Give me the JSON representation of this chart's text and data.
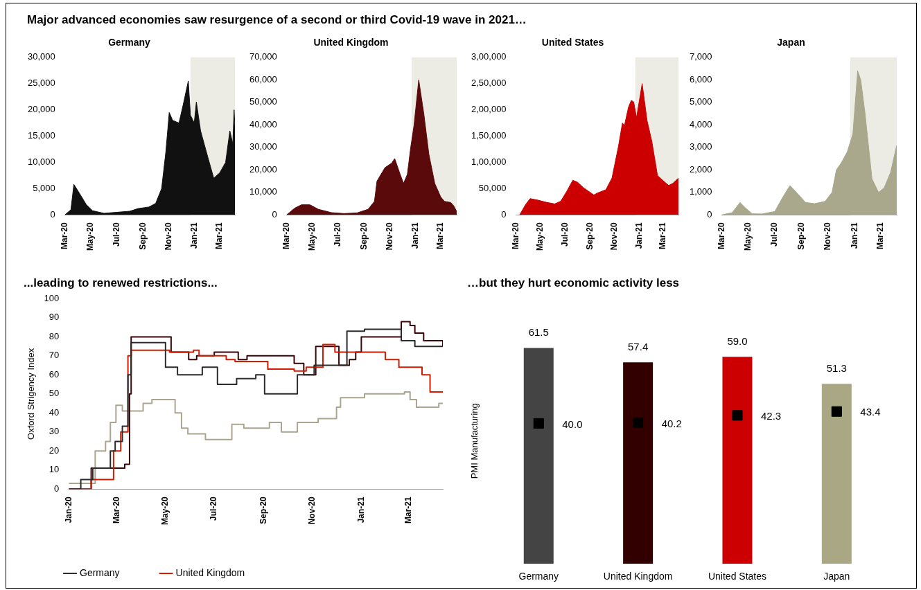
{
  "chart_data": [
    {
      "type": "other",
      "title": "Major advanced economies saw resurgence of a second or third Covid-19 wave in 2021…"
    },
    {
      "type": "area",
      "title": "Germany",
      "xlim": [
        "2020-03-01",
        "2021-04-06"
      ],
      "xticks": [
        {
          "value": "2020-03",
          "label": "Mar-20"
        },
        {
          "value": "2020-05",
          "label": "May-20"
        },
        {
          "value": "2020-07",
          "label": "Jul-20"
        },
        {
          "value": "2020-09",
          "label": "Sep-20"
        },
        {
          "value": "2020-11",
          "label": "Nov-20"
        },
        {
          "value": "2021-01",
          "label": "Jan-21"
        },
        {
          "value": "2021-03",
          "label": "Mar-21"
        }
      ],
      "ylim": [
        0,
        30000
      ],
      "yticks": [
        {
          "value": 0,
          "label": "0"
        },
        {
          "value": 5000,
          "label": "5,000"
        },
        {
          "value": 10000,
          "label": "10,000"
        },
        {
          "value": 15000,
          "label": "15,000"
        },
        {
          "value": 20000,
          "label": "20,000"
        },
        {
          "value": 25000,
          "label": "25,000"
        },
        {
          "value": 30000,
          "label": "30,000"
        }
      ],
      "bands": [
        {
          "axis": "x",
          "from": "2020-12-22",
          "to": "2021-04-06",
          "color": "#ececE4"
        }
      ],
      "series": [
        {
          "color": "#111111",
          "x": [
            "2020-03-01",
            "2020-03-15",
            "2020-03-22",
            "2020-04-05",
            "2020-04-20",
            "2020-05-05",
            "2020-06-01",
            "2020-07-01",
            "2020-08-01",
            "2020-08-20",
            "2020-09-15",
            "2020-10-01",
            "2020-10-15",
            "2020-10-25",
            "2020-11-02",
            "2020-11-10",
            "2020-11-25",
            "2020-12-05",
            "2020-12-17",
            "2020-12-22",
            "2020-12-31",
            "2021-01-05",
            "2021-01-15",
            "2021-02-01",
            "2021-02-15",
            "2021-03-01",
            "2021-03-15",
            "2021-03-25",
            "2021-04-01",
            "2021-04-04",
            "2021-04-06"
          ],
          "values": [
            0,
            1000,
            5800,
            4000,
            2000,
            800,
            300,
            500,
            700,
            1200,
            1500,
            2200,
            5000,
            12000,
            19500,
            18000,
            17500,
            21000,
            25500,
            19000,
            17500,
            21500,
            16000,
            11000,
            7000,
            8000,
            10000,
            16000,
            13500,
            20000,
            17000
          ]
        }
      ]
    },
    {
      "type": "area",
      "title": "United Kingdom",
      "xlim": [
        "2020-03-01",
        "2021-04-08"
      ],
      "xticks": [
        {
          "value": "2020-03",
          "label": "Mar-20"
        },
        {
          "value": "2020-05",
          "label": "May-20"
        },
        {
          "value": "2020-07",
          "label": "Jul-20"
        },
        {
          "value": "2020-09",
          "label": "Sep-20"
        },
        {
          "value": "2020-11",
          "label": "Nov-20"
        },
        {
          "value": "2021-01",
          "label": "Jan-21"
        },
        {
          "value": "2021-03",
          "label": "Mar-21"
        }
      ],
      "ylim": [
        0,
        70000
      ],
      "yticks": [
        {
          "value": 0,
          "label": "0"
        },
        {
          "value": 10000,
          "label": "10,000"
        },
        {
          "value": 20000,
          "label": "20,000"
        },
        {
          "value": 30000,
          "label": "30,000"
        },
        {
          "value": 40000,
          "label": "40,000"
        },
        {
          "value": 50000,
          "label": "50,000"
        },
        {
          "value": 60000,
          "label": "60,000"
        },
        {
          "value": 70000,
          "label": "70,000"
        }
      ],
      "bands": [
        {
          "axis": "x",
          "from": "2020-12-22",
          "to": "2021-04-08",
          "color": "#ececE4"
        }
      ],
      "series": [
        {
          "color": "#5a0a0a",
          "x": [
            "2020-03-01",
            "2020-03-20",
            "2020-04-05",
            "2020-04-25",
            "2020-05-15",
            "2020-06-15",
            "2020-07-15",
            "2020-08-15",
            "2020-09-10",
            "2020-09-25",
            "2020-10-01",
            "2020-10-20",
            "2020-11-05",
            "2020-11-12",
            "2020-11-25",
            "2020-12-03",
            "2020-12-12",
            "2020-12-20",
            "2020-12-28",
            "2021-01-08",
            "2021-01-20",
            "2021-02-01",
            "2021-02-15",
            "2021-03-01",
            "2021-03-10",
            "2021-03-25",
            "2021-04-01",
            "2021-04-08"
          ],
          "values": [
            0,
            3000,
            4500,
            4500,
            2500,
            1000,
            600,
            900,
            2500,
            6000,
            15000,
            21000,
            23000,
            25000,
            18000,
            14000,
            18000,
            30000,
            40000,
            60000,
            45000,
            27000,
            14000,
            8000,
            6000,
            5500,
            4000,
            1500
          ]
        }
      ]
    },
    {
      "type": "area",
      "title": "United States",
      "xlim": [
        "2020-03-01",
        "2021-04-08"
      ],
      "xticks": [
        {
          "value": "2020-03",
          "label": "Mar-20"
        },
        {
          "value": "2020-05",
          "label": "May-20"
        },
        {
          "value": "2020-07",
          "label": "Jul-20"
        },
        {
          "value": "2020-09",
          "label": "Sep-20"
        },
        {
          "value": "2020-11",
          "label": "Nov-20"
        },
        {
          "value": "2021-01",
          "label": "Jan-21"
        },
        {
          "value": "2021-03",
          "label": "Mar-21"
        }
      ],
      "ylim": [
        0,
        300000
      ],
      "yticks": [
        {
          "value": 0,
          "label": "0"
        },
        {
          "value": 50000,
          "label": "50,000"
        },
        {
          "value": 100000,
          "label": "1,00,000"
        },
        {
          "value": 150000,
          "label": "1,50,000"
        },
        {
          "value": 200000,
          "label": "2,00,000"
        },
        {
          "value": 250000,
          "label": "2,50,000"
        },
        {
          "value": 300000,
          "label": "3,00,000"
        }
      ],
      "bands": [
        {
          "axis": "x",
          "from": "2020-12-22",
          "to": "2021-04-08",
          "color": "#ececE4"
        }
      ],
      "series": [
        {
          "color": "#cc0000",
          "x": [
            "2020-03-10",
            "2020-03-25",
            "2020-04-05",
            "2020-04-25",
            "2020-05-15",
            "2020-06-05",
            "2020-06-20",
            "2020-07-05",
            "2020-07-20",
            "2020-08-01",
            "2020-08-15",
            "2020-09-10",
            "2020-09-20",
            "2020-10-10",
            "2020-10-25",
            "2020-11-10",
            "2020-11-20",
            "2020-11-25",
            "2020-12-05",
            "2020-12-12",
            "2020-12-18",
            "2020-12-25",
            "2021-01-08",
            "2021-01-20",
            "2021-02-01",
            "2021-02-15",
            "2021-03-01",
            "2021-03-15",
            "2021-03-25",
            "2021-04-08"
          ],
          "values": [
            0,
            20000,
            31000,
            28000,
            24000,
            21000,
            26000,
            45000,
            66000,
            62000,
            52000,
            38000,
            42000,
            48000,
            70000,
            130000,
            175000,
            170000,
            205000,
            218000,
            215000,
            185000,
            250000,
            180000,
            140000,
            75000,
            65000,
            56000,
            60000,
            70000
          ]
        }
      ]
    },
    {
      "type": "area",
      "title": "Japan",
      "xlim": [
        "2020-03-01",
        "2021-04-08"
      ],
      "xticks": [
        {
          "value": "2020-03",
          "label": "Mar-20"
        },
        {
          "value": "2020-05",
          "label": "May-20"
        },
        {
          "value": "2020-07",
          "label": "Jul-20"
        },
        {
          "value": "2020-09",
          "label": "Sep-20"
        },
        {
          "value": "2020-11",
          "label": "Nov-20"
        },
        {
          "value": "2021-01",
          "label": "Jan-21"
        },
        {
          "value": "2021-03",
          "label": "Mar-21"
        }
      ],
      "ylim": [
        0,
        7000
      ],
      "yticks": [
        {
          "value": 0,
          "label": "0"
        },
        {
          "value": 1000,
          "label": "1,000"
        },
        {
          "value": 2000,
          "label": "2,000"
        },
        {
          "value": 3000,
          "label": "3,000"
        },
        {
          "value": 4000,
          "label": "4,000"
        },
        {
          "value": 5000,
          "label": "5,000"
        },
        {
          "value": 6000,
          "label": "6,000"
        },
        {
          "value": 7000,
          "label": "7,000"
        }
      ],
      "bands": [
        {
          "axis": "x",
          "from": "2020-12-22",
          "to": "2021-04-08",
          "color": "#ececE4"
        }
      ],
      "series": [
        {
          "color": "#a9a78c",
          "x": [
            "2020-03-01",
            "2020-03-25",
            "2020-04-12",
            "2020-04-25",
            "2020-05-10",
            "2020-06-01",
            "2020-07-01",
            "2020-07-20",
            "2020-08-05",
            "2020-08-20",
            "2020-09-10",
            "2020-10-01",
            "2020-10-25",
            "2020-11-10",
            "2020-11-20",
            "2020-12-01",
            "2020-12-15",
            "2020-12-28",
            "2021-01-08",
            "2021-01-15",
            "2021-01-25",
            "2021-02-10",
            "2021-02-25",
            "2021-03-10",
            "2021-03-25",
            "2021-04-08"
          ],
          "values": [
            0,
            100,
            550,
            300,
            50,
            40,
            150,
            800,
            1300,
            1000,
            550,
            500,
            600,
            1000,
            2000,
            2300,
            2800,
            3600,
            6400,
            6000,
            4500,
            1600,
            1000,
            1200,
            1900,
            3100
          ]
        }
      ]
    },
    {
      "type": "step",
      "title": "...leading to renewed restrictions...",
      "ylabel": "Oxford Strigency Index",
      "legend": "bottom",
      "xlim": [
        "2020-01-01",
        "2021-04-13"
      ],
      "xticks": [
        {
          "value": "2020-01",
          "label": "Jan-20"
        },
        {
          "value": "2020-03",
          "label": "Mar-20"
        },
        {
          "value": "2020-05",
          "label": "May-20"
        },
        {
          "value": "2020-07",
          "label": "Jul-20"
        },
        {
          "value": "2020-09",
          "label": "Sep-20"
        },
        {
          "value": "2020-11",
          "label": "Nov-20"
        },
        {
          "value": "2021-01",
          "label": "Jan-21"
        },
        {
          "value": "2021-03",
          "label": "Mar-21"
        }
      ],
      "ylim": [
        0,
        100
      ],
      "yticks": [
        0,
        10,
        20,
        30,
        40,
        50,
        60,
        70,
        80,
        90,
        100
      ],
      "series": [
        {
          "name": "Germany",
          "color": "#2b2b2b",
          "x": [
            "2020-01-01",
            "2020-01-16",
            "2020-01-31",
            "2020-02-22",
            "2020-02-28",
            "2020-03-08",
            "2020-03-15",
            "2020-03-19",
            "2020-05-01",
            "2020-05-16",
            "2020-06-16",
            "2020-07-05",
            "2020-07-29",
            "2020-08-22",
            "2020-09-02",
            "2020-10-13",
            "2020-11-03",
            "2020-12-14",
            "2021-01-05",
            "2021-02-20",
            "2021-03-09",
            "2021-04-13"
          ],
          "values": [
            0,
            5,
            11,
            20,
            25,
            33,
            60,
            77,
            64,
            60,
            64,
            55,
            58,
            60,
            50,
            60,
            65,
            83,
            84,
            78,
            75,
            75
          ]
        },
        {
          "name": "United Kingdom",
          "color": "#d01c00",
          "x": [
            "2020-01-01",
            "2020-01-29",
            "2020-02-26",
            "2020-03-06",
            "2020-03-15",
            "2020-03-19",
            "2020-05-06",
            "2020-06-05",
            "2020-06-12",
            "2020-07-16",
            "2020-07-27",
            "2020-09-06",
            "2020-10-09",
            "2020-10-24",
            "2020-11-14",
            "2020-11-29",
            "2021-01-31",
            "2021-02-17",
            "2021-03-18",
            "2021-03-28",
            "2021-04-13"
          ],
          "values": [
            0,
            5,
            20,
            30,
            70,
            73,
            72,
            73,
            70,
            68,
            67,
            63,
            62,
            64,
            76,
            72,
            68,
            64,
            60,
            51,
            51
          ]
        },
        {
          "color": "#3a0508",
          "x": [
            "2020-01-01",
            "2020-01-29",
            "2020-03-11",
            "2020-03-17",
            "2020-03-19",
            "2020-05-08",
            "2020-05-30",
            "2020-06-09",
            "2020-07-01",
            "2020-07-31",
            "2020-08-11",
            "2020-10-09",
            "2020-10-21",
            "2020-11-05",
            "2020-12-04",
            "2020-12-17",
            "2020-12-25",
            "2021-01-01",
            "2021-02-20",
            "2021-03-03",
            "2021-03-09",
            "2021-03-20",
            "2021-04-13"
          ],
          "values": [
            0,
            11,
            13,
            50,
            80,
            72,
            68,
            70,
            72,
            68,
            70,
            66,
            60,
            75,
            65,
            68,
            72,
            80,
            88,
            86,
            82,
            78,
            75
          ]
        },
        {
          "color": "#aba590",
          "x": [
            "2020-01-01",
            "2020-02-03",
            "2020-02-16",
            "2020-02-22",
            "2020-02-29",
            "2020-03-08",
            "2020-04-03",
            "2020-04-14",
            "2020-05-13",
            "2020-05-21",
            "2020-05-29",
            "2020-06-20",
            "2020-07-23",
            "2020-08-07",
            "2020-09-08",
            "2020-09-23",
            "2020-10-13",
            "2020-11-08",
            "2020-12-01",
            "2020-12-06",
            "2021-01-05",
            "2021-02-24",
            "2021-03-03",
            "2021-03-11",
            "2021-04-08",
            "2021-04-13"
          ],
          "values": [
            3,
            20,
            25,
            35,
            44,
            41,
            45,
            47,
            40,
            32,
            29,
            26,
            34,
            32,
            35,
            30,
            35,
            37,
            43,
            48,
            50,
            51,
            47,
            43,
            45,
            45
          ]
        }
      ]
    },
    {
      "type": "bar",
      "title": "…but they hurt economic activity less",
      "ylabel": "PMI Manufacturing",
      "tick_labels": "x",
      "marker": "square",
      "categories": [
        "Germany",
        "United Kingdom",
        "United States",
        "Japan"
      ],
      "series": [
        {
          "type": "bar",
          "colors": [
            "#444444",
            "#330000",
            "#cc0000",
            "#a9a784"
          ],
          "values": [
            61.5,
            57.4,
            59.0,
            51.3
          ],
          "value_labels": [
            "61.5",
            "57.4",
            "59.0",
            "51.3"
          ]
        },
        {
          "type": "scatter",
          "color": "#000000",
          "x": [
            "Germany",
            "United Kingdom",
            "United States",
            "Japan"
          ],
          "values": [
            40.0,
            40.2,
            42.3,
            43.4
          ],
          "value_labels": [
            "40.0",
            "40.2",
            "42.3",
            "43.4"
          ]
        }
      ]
    }
  ]
}
